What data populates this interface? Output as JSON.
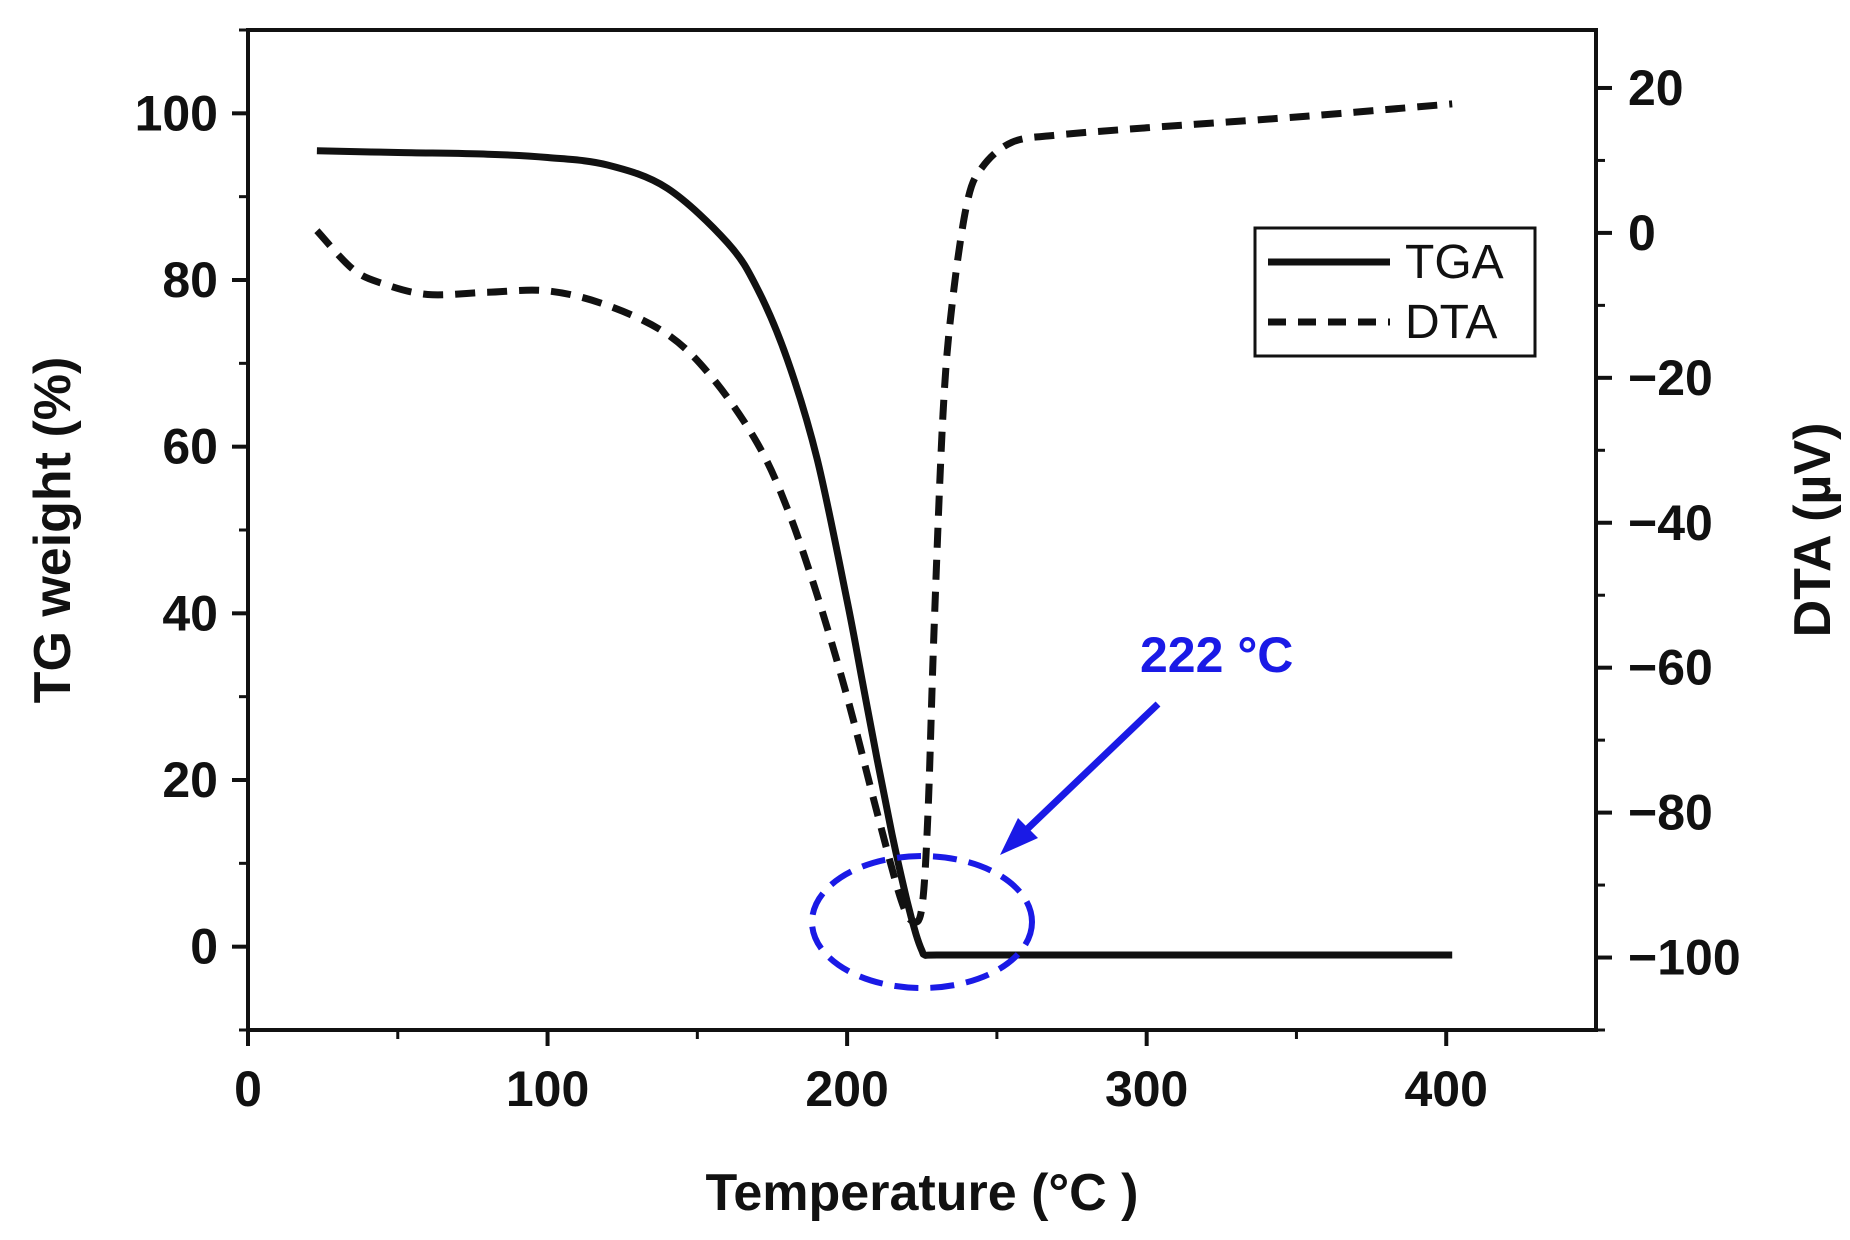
{
  "chart_data": {
    "type": "line",
    "xlabel": "Temperature (°C )",
    "ylabel": "TG weight (%)",
    "y2label": "DTA (µV)",
    "xlim": [
      0,
      450
    ],
    "ylim": [
      -10,
      110
    ],
    "y2lim": [
      -110,
      28
    ],
    "x_ticks": [
      0,
      100,
      200,
      300,
      400
    ],
    "y_ticks": [
      0,
      20,
      40,
      60,
      80,
      100
    ],
    "y2_ticks": [
      -100,
      -80,
      -60,
      -40,
      -20,
      0,
      20
    ],
    "x_tick_labels": [
      "0",
      "100",
      "200",
      "300",
      "400"
    ],
    "y_tick_labels": [
      "0",
      "20",
      "40",
      "60",
      "80",
      "100"
    ],
    "y2_tick_labels": [
      "−100",
      "−80",
      "−60",
      "−40",
      "−20",
      "0",
      "20"
    ],
    "legend_position": "top-right",
    "series": [
      {
        "name": "TGA",
        "axis": "left",
        "style": "solid",
        "x": [
          23,
          50,
          80,
          100,
          120,
          140,
          160,
          170,
          180,
          190,
          200,
          205,
          210,
          215,
          220,
          223,
          225,
          226,
          230,
          260,
          300,
          350,
          402
        ],
        "y": [
          95.5,
          95.3,
          95.1,
          94.7,
          93.8,
          91.0,
          84.5,
          79.0,
          70.5,
          58.5,
          41.5,
          32.0,
          22.5,
          13.5,
          5.5,
          1.5,
          -0.5,
          -1.0,
          -1.0,
          -1.0,
          -1.0,
          -1.0,
          -1.0
        ]
      },
      {
        "name": "DTA",
        "axis": "right",
        "style": "dashed",
        "x": [
          23,
          35,
          45,
          60,
          80,
          100,
          120,
          140,
          155,
          170,
          180,
          190,
          200,
          210,
          218,
          222,
          225,
          227,
          229,
          232,
          235,
          240,
          245,
          255,
          270,
          300,
          350,
          402
        ],
        "y": [
          0.3,
          -5.0,
          -7.0,
          -8.5,
          -8.2,
          -8.0,
          -10.0,
          -14.0,
          -20.0,
          -29.0,
          -38.0,
          -50.0,
          -64.0,
          -80.0,
          -92.0,
          -95.0,
          -93.0,
          -80.0,
          -55.0,
          -25.0,
          -10.0,
          4.0,
          9.0,
          12.5,
          13.5,
          14.5,
          16.0,
          17.8
        ]
      }
    ],
    "annotations": [
      {
        "text": "222 °C",
        "x": 222,
        "color": "#1a1ae6"
      }
    ]
  }
}
